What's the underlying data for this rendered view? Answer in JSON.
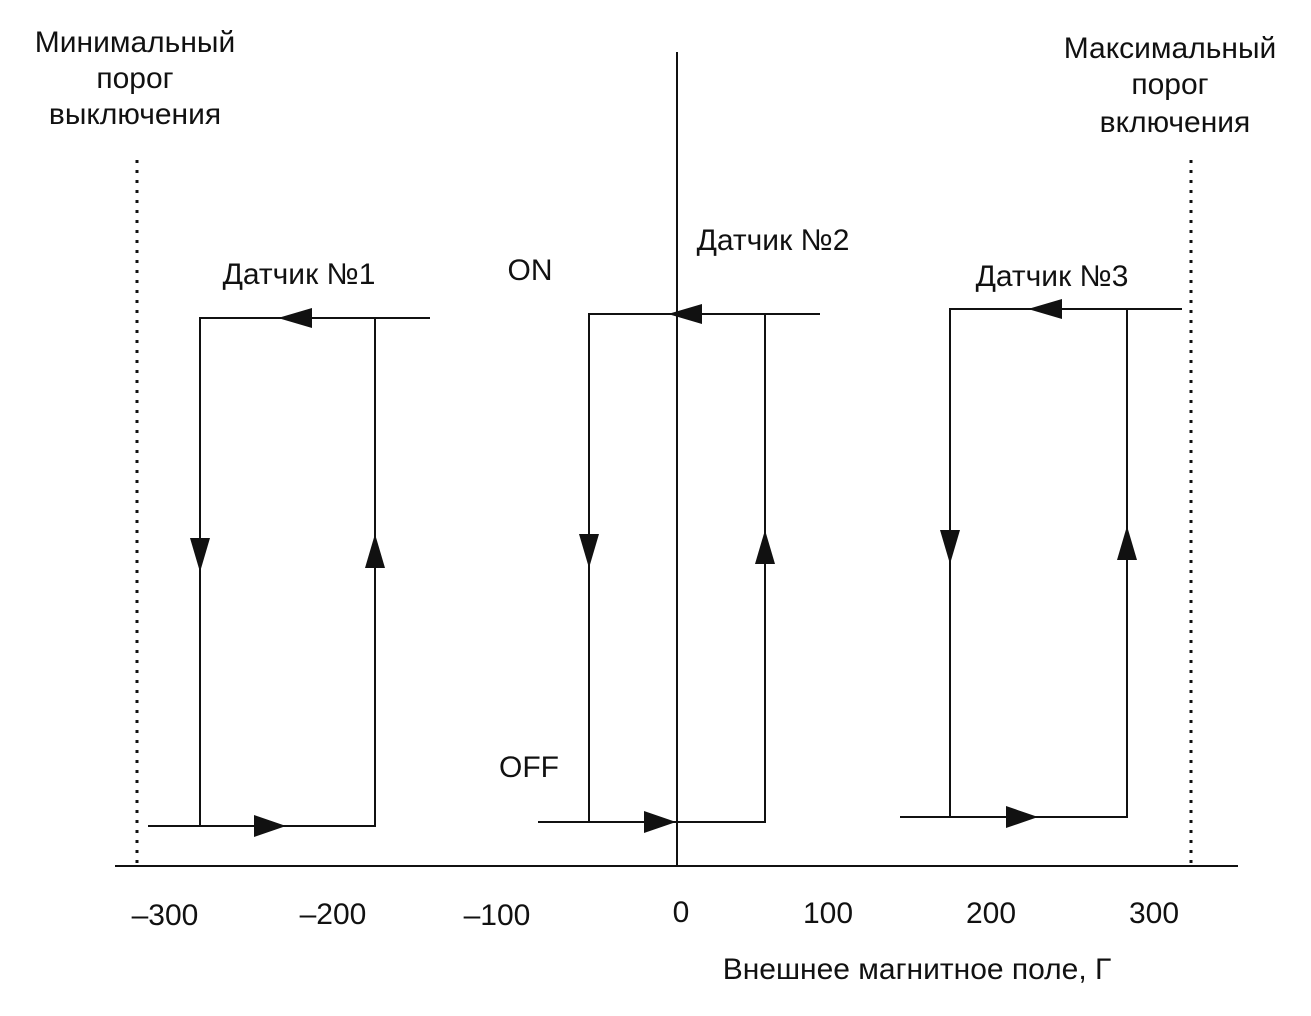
{
  "labels": {
    "min_threshold": [
      "Минимальный",
      "порог",
      "выключения"
    ],
    "max_threshold": [
      "Максимальный",
      "порог",
      "включения"
    ],
    "on": "ON",
    "off": "OFF",
    "x_axis_title": "Внешнее магнитное поле, Г"
  },
  "x_ticks": [
    "–300",
    "–200",
    "–100",
    "0",
    "100",
    "200",
    "300"
  ],
  "sensors": [
    {
      "name": "Датчик №1"
    },
    {
      "name": "Датчик №2"
    },
    {
      "name": "Датчик №3"
    }
  ],
  "colors": {
    "ink": "#111111",
    "background": "#ffffff"
  }
}
